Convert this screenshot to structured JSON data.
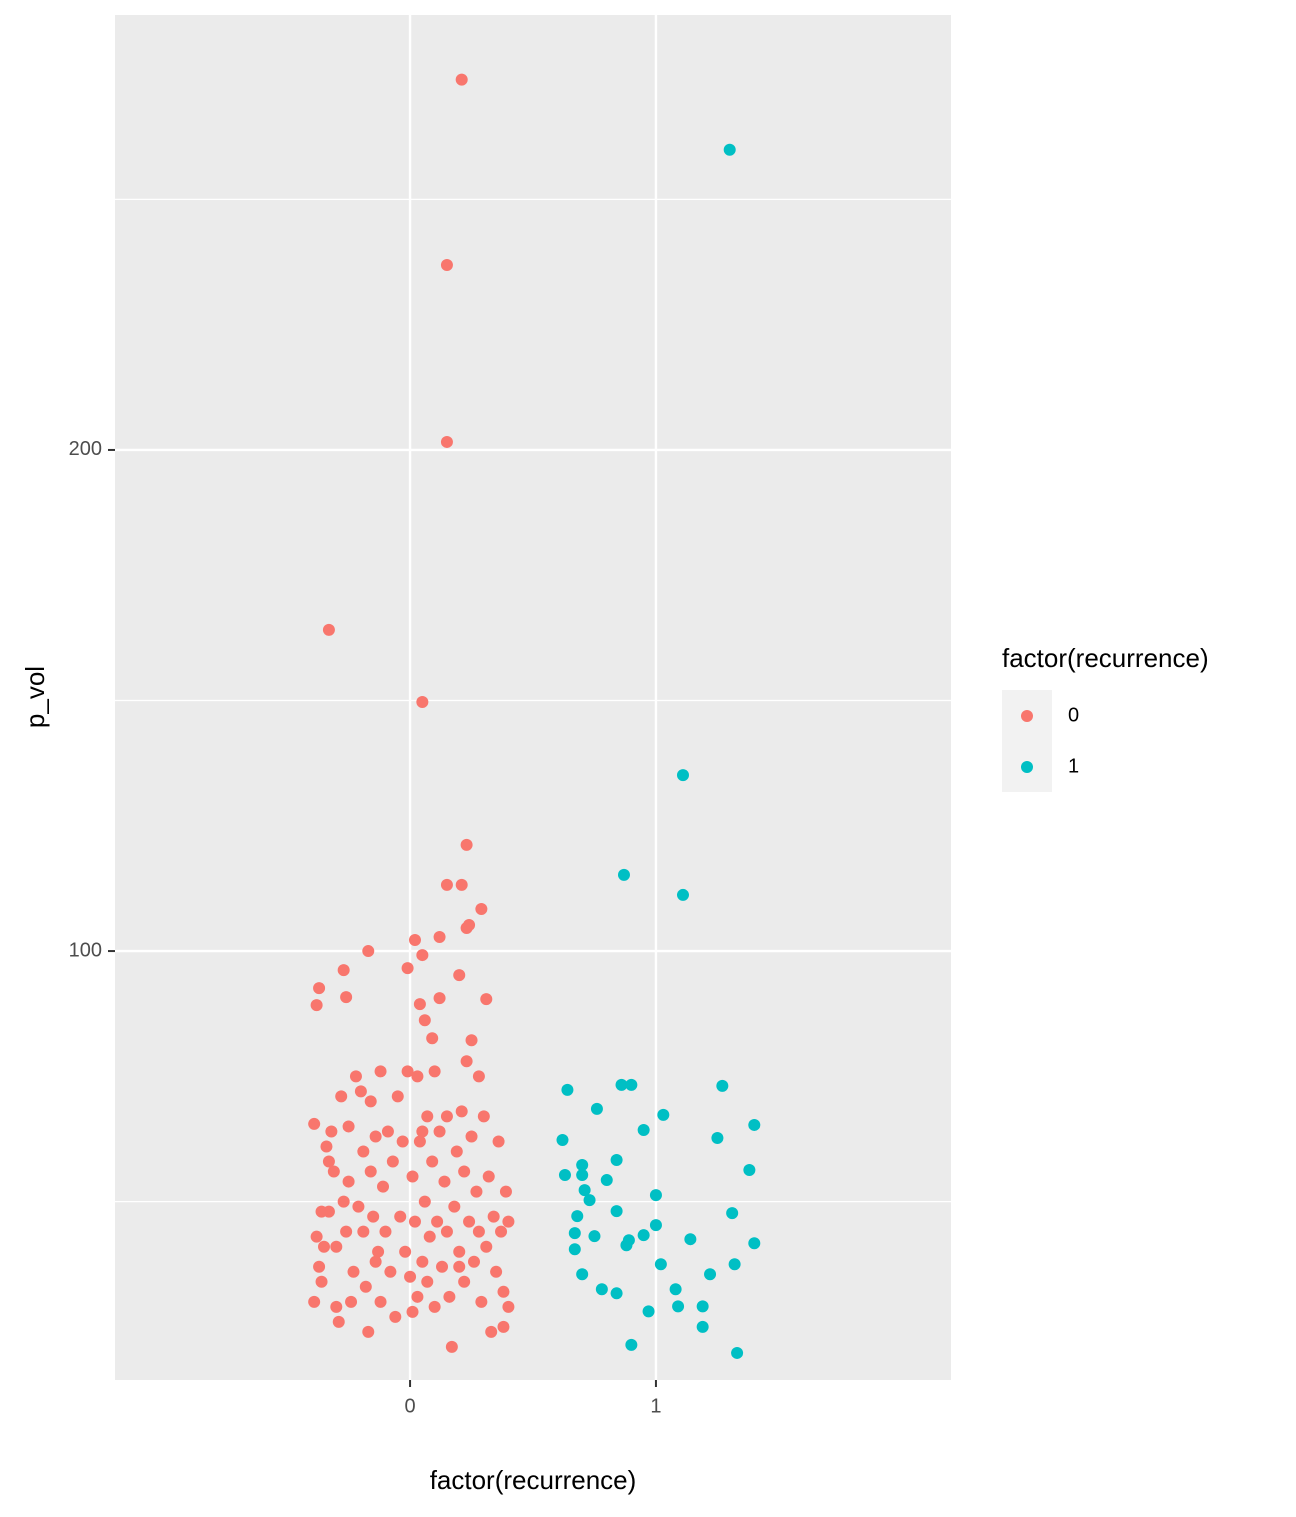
{
  "chart_data": {
    "type": "scatter",
    "xlabel": "factor(recurrence)",
    "ylabel": "p_vol",
    "legend_title": "factor(recurrence)",
    "legend": "right",
    "xlim": [
      -1.2,
      2.2
    ],
    "xticks": [
      0,
      1
    ],
    "ylim": [
      14.4,
      286.8
    ],
    "yticks": [
      100,
      200
    ],
    "minor_yticks": [
      50,
      150,
      250
    ],
    "grid": true,
    "series": [
      {
        "name": "0",
        "color": "#F8766D",
        "x": [
          0.21,
          0.15,
          0.15,
          -0.33,
          0.05,
          0.23,
          0.15,
          0.21,
          0.29,
          0.24,
          0.23,
          0.12,
          0.02,
          -0.17,
          0.05,
          -0.01,
          -0.27,
          0.2,
          -0.37,
          -0.26,
          0.12,
          0.31,
          -0.38,
          0.04,
          0.06,
          0.09,
          0.25,
          -0.39,
          -0.38,
          -0.37,
          -0.39,
          -0.36,
          -0.35,
          -0.34,
          -0.33,
          -0.33,
          -0.32,
          -0.31,
          -0.3,
          -0.3,
          -0.29,
          -0.28,
          -0.27,
          -0.26,
          -0.25,
          -0.25,
          -0.24,
          -0.23,
          -0.22,
          -0.21,
          -0.2,
          -0.19,
          -0.19,
          -0.18,
          -0.17,
          -0.16,
          -0.16,
          -0.15,
          -0.14,
          -0.13,
          -0.12,
          -0.12,
          -0.11,
          -0.1,
          -0.09,
          -0.08,
          -0.07,
          -0.06,
          -0.05,
          -0.04,
          -0.03,
          -0.02,
          -0.01,
          0.0,
          0.01,
          0.02,
          0.03,
          0.03,
          0.04,
          0.05,
          0.06,
          0.07,
          0.07,
          0.08,
          0.09,
          0.1,
          0.1,
          0.11,
          0.12,
          0.13,
          0.14,
          0.15,
          0.15,
          0.16,
          0.17,
          0.18,
          0.19,
          0.2,
          0.21,
          0.22,
          0.22,
          0.23,
          0.24,
          0.25,
          0.26,
          0.27,
          0.28,
          0.28,
          0.29,
          0.3,
          0.31,
          0.32,
          0.33,
          0.34,
          0.35,
          0.36,
          0.37,
          0.38,
          0.38,
          0.39,
          0.4,
          0.4,
          -0.36,
          0.01,
          0.05,
          -0.14,
          0.2
        ],
        "values": [
          273.9,
          236.9,
          201.6,
          164.1,
          149.7,
          121.2,
          113.2,
          113.2,
          108.4,
          105.2,
          104.6,
          102.8,
          102.2,
          100,
          99.2,
          96.6,
          96.2,
          95.2,
          92.6,
          90.8,
          90.6,
          90.4,
          89.2,
          89.4,
          86.2,
          82.6,
          82.2,
          65.5,
          43,
          37,
          30,
          34,
          41,
          61,
          58,
          48,
          64,
          56,
          41,
          29,
          26,
          71,
          50,
          44,
          65,
          54,
          30,
          36,
          75,
          49,
          72,
          60,
          44,
          33,
          24,
          70,
          56,
          47,
          63,
          40,
          76,
          30,
          53,
          44,
          64,
          36,
          58,
          27,
          71,
          47,
          62,
          40,
          76,
          35,
          55,
          46,
          75,
          31,
          62,
          38,
          50,
          67,
          34,
          43,
          58,
          29,
          76,
          46,
          64,
          37,
          54,
          67,
          44,
          31,
          21,
          49,
          60,
          40,
          68,
          56,
          34,
          78,
          46,
          63,
          38,
          52,
          75,
          44,
          30,
          67,
          41,
          55,
          24,
          47,
          36,
          62,
          44,
          32,
          25,
          52,
          46,
          29,
          48,
          28,
          64,
          38,
          37
        ]
      },
      {
        "name": "1",
        "color": "#00BFC4",
        "x": [
          1.3,
          1.11,
          0.87,
          1.11,
          0.64,
          0.86,
          0.9,
          1.27,
          0.76,
          1.03,
          1.4,
          0.95,
          0.62,
          1.25,
          0.84,
          0.7,
          1.38,
          0.63,
          0.7,
          0.8,
          0.71,
          1.0,
          0.73,
          0.84,
          1.31,
          0.68,
          1.0,
          0.67,
          0.75,
          0.95,
          0.89,
          1.14,
          1.4,
          0.88,
          0.67,
          1.02,
          1.32,
          0.7,
          1.22,
          0.78,
          1.08,
          0.84,
          1.09,
          1.19,
          0.97,
          1.19,
          0.9,
          1.33
        ],
        "values": [
          259.9,
          135.1,
          115.2,
          111.2,
          72.3,
          73.3,
          73.3,
          73.1,
          68.5,
          67.3,
          65.3,
          64.3,
          62.3,
          62.7,
          58.3,
          57.3,
          56.3,
          55.3,
          55.3,
          54.3,
          52.3,
          51.3,
          50.3,
          48.1,
          47.7,
          47.1,
          45.3,
          43.7,
          43.1,
          43.3,
          42.3,
          42.5,
          41.7,
          41.3,
          40.5,
          37.5,
          37.5,
          35.5,
          35.5,
          32.5,
          32.5,
          31.7,
          29.1,
          29.1,
          28.1,
          25.0,
          21.4,
          19.8
        ]
      }
    ]
  }
}
